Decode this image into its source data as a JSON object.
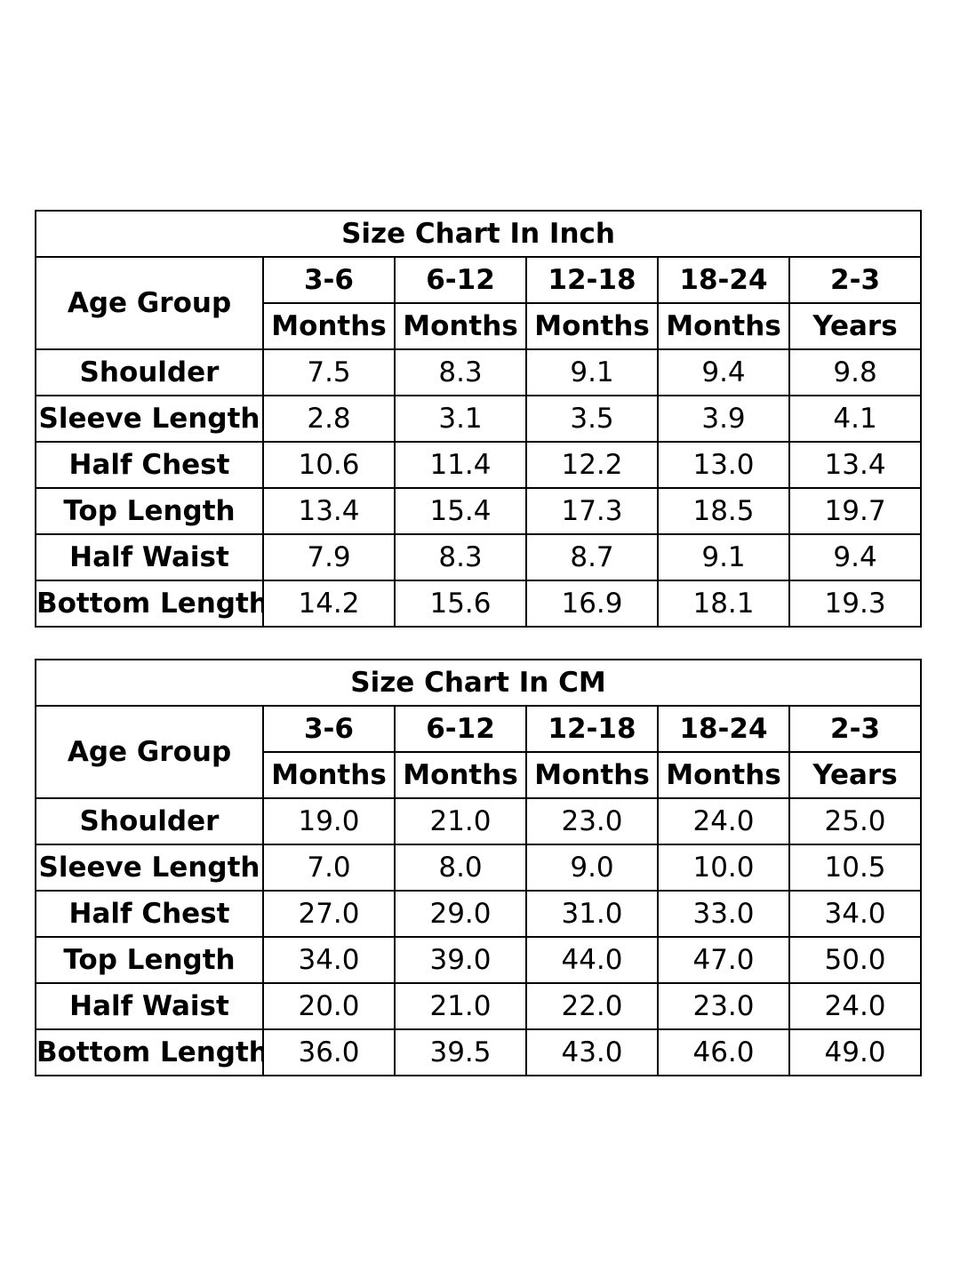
{
  "inch_chart": {
    "title": "Size Chart In Inch",
    "age_group_label": "Age Group",
    "columns": [
      {
        "top": "3-6",
        "bottom": "Months"
      },
      {
        "top": "6-12",
        "bottom": "Months"
      },
      {
        "top": "12-18",
        "bottom": "Months"
      },
      {
        "top": "18-24",
        "bottom": "Months"
      },
      {
        "top": "2-3",
        "bottom": "Years"
      }
    ],
    "rows": [
      {
        "label": "Shoulder",
        "values": [
          "7.5",
          "8.3",
          "9.1",
          "9.4",
          "9.8"
        ]
      },
      {
        "label": "Sleeve Length",
        "values": [
          "2.8",
          "3.1",
          "3.5",
          "3.9",
          "4.1"
        ]
      },
      {
        "label": "Half Chest",
        "values": [
          "10.6",
          "11.4",
          "12.2",
          "13.0",
          "13.4"
        ]
      },
      {
        "label": "Top Length",
        "values": [
          "13.4",
          "15.4",
          "17.3",
          "18.5",
          "19.7"
        ]
      },
      {
        "label": "Half Waist",
        "values": [
          "7.9",
          "8.3",
          "8.7",
          "9.1",
          "9.4"
        ]
      },
      {
        "label": "Bottom Length",
        "values": [
          "14.2",
          "15.6",
          "16.9",
          "18.1",
          "19.3"
        ]
      }
    ]
  },
  "cm_chart": {
    "title": "Size Chart In CM",
    "age_group_label": "Age Group",
    "columns": [
      {
        "top": "3-6",
        "bottom": "Months"
      },
      {
        "top": "6-12",
        "bottom": "Months"
      },
      {
        "top": "12-18",
        "bottom": "Months"
      },
      {
        "top": "18-24",
        "bottom": "Months"
      },
      {
        "top": "2-3",
        "bottom": "Years"
      }
    ],
    "rows": [
      {
        "label": "Shoulder",
        "values": [
          "19.0",
          "21.0",
          "23.0",
          "24.0",
          "25.0"
        ]
      },
      {
        "label": "Sleeve Length",
        "values": [
          "7.0",
          "8.0",
          "9.0",
          "10.0",
          "10.5"
        ]
      },
      {
        "label": "Half Chest",
        "values": [
          "27.0",
          "29.0",
          "31.0",
          "33.0",
          "34.0"
        ]
      },
      {
        "label": "Top Length",
        "values": [
          "34.0",
          "39.0",
          "44.0",
          "47.0",
          "50.0"
        ]
      },
      {
        "label": "Half Waist",
        "values": [
          "20.0",
          "21.0",
          "22.0",
          "23.0",
          "24.0"
        ]
      },
      {
        "label": "Bottom Length",
        "values": [
          "36.0",
          "39.5",
          "43.0",
          "46.0",
          "49.0"
        ]
      }
    ]
  }
}
